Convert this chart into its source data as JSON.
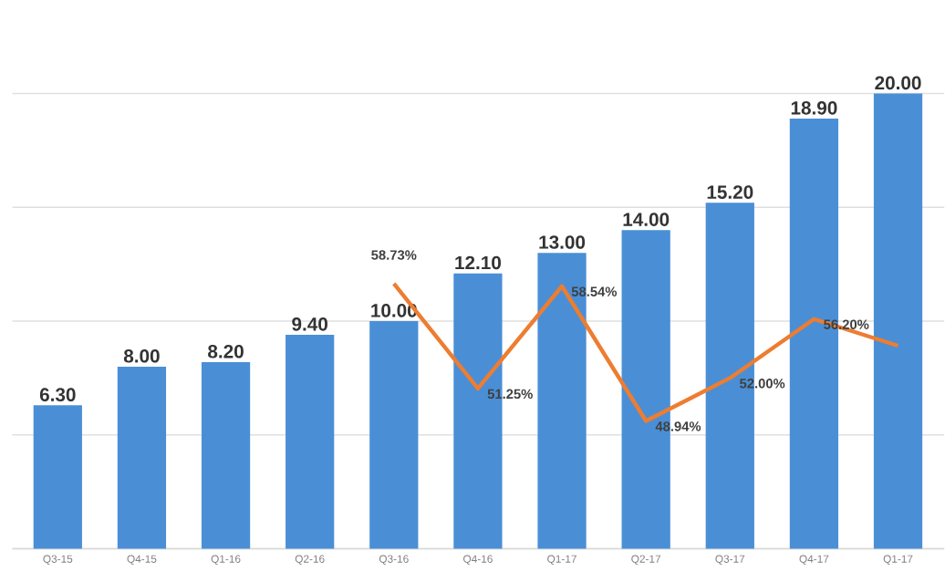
{
  "chart_data": {
    "type": "bar",
    "categories": [
      "Q3-15",
      "Q4-15",
      "Q1-16",
      "Q2-16",
      "Q3-16",
      "Q4-16",
      "Q1-17",
      "Q2-17",
      "Q3-17",
      "Q4-17",
      "Q1-17"
    ],
    "series": [
      {
        "color": "#4a8fd6",
        "values": [
          6.3,
          8.0,
          8.2,
          9.4,
          10.0,
          12.1,
          13.0,
          14.0,
          15.2,
          18.9,
          20.0
        ],
        "value_labels": [
          "6.30",
          "8.00",
          "8.20",
          "9.40",
          "10.00",
          "12.10",
          "13.00",
          "14.00",
          "15.20",
          "18.90",
          "20.00"
        ]
      },
      {
        "type": "line",
        "axis": "y2",
        "color": "#ed7d31",
        "values": [
          null,
          null,
          null,
          null,
          58.73,
          51.25,
          58.54,
          48.94,
          52.0,
          56.2,
          54.3
        ],
        "value_labels": [
          null,
          null,
          null,
          null,
          "58.73%",
          "51.25%",
          "58.54%",
          "48.94%",
          "52.00%",
          "56.20%",
          null
        ]
      }
    ],
    "ylim": [
      0,
      20
    ],
    "yticks": [
      {
        "value": 0,
        "label": null
      },
      {
        "value": 5,
        "label": null
      },
      {
        "value": 10,
        "label": null
      },
      {
        "value": 15,
        "label": null
      },
      {
        "value": 20,
        "label": null
      }
    ],
    "grid": "y",
    "tick_labels": "x",
    "marker": "none",
    "line_style": "solid"
  }
}
